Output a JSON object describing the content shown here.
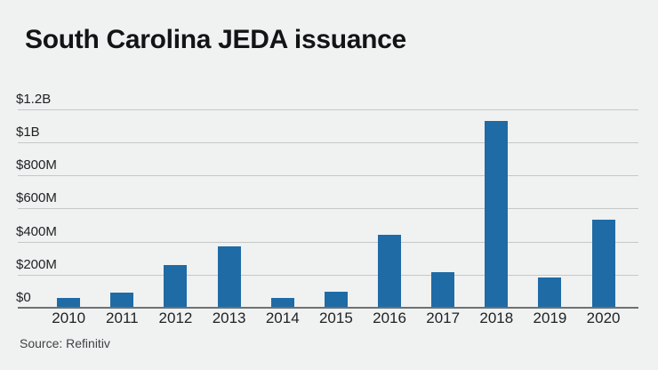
{
  "page": {
    "title": "South Carolina JEDA issuance",
    "source": "Source: Refinitiv"
  },
  "colors": {
    "background": "#f0f1f1",
    "bar": "#1f6ba6",
    "gridline": "#c6c8c8",
    "axis_line": "#6e7172",
    "title_text": "#121415",
    "tick_text": "#202325",
    "source_text": "#3f4244"
  },
  "chart_data": {
    "type": "bar",
    "title": "South Carolina JEDA issuance",
    "source": "Source: Refinitiv",
    "categories": [
      "2010",
      "2011",
      "2012",
      "2013",
      "2014",
      "2015",
      "2016",
      "2017",
      "2018",
      "2019",
      "2020"
    ],
    "values": [
      60,
      90,
      260,
      370,
      60,
      95,
      440,
      215,
      1130,
      185,
      530
    ],
    "unit": "USD millions",
    "xlabel": "",
    "ylabel": "",
    "ylim": [
      0,
      1200
    ],
    "y_ticks": [
      {
        "value": 0,
        "label": "$0"
      },
      {
        "value": 200,
        "label": "$200M"
      },
      {
        "value": 400,
        "label": "$400M"
      },
      {
        "value": 600,
        "label": "$600M"
      },
      {
        "value": 800,
        "label": "$800M"
      },
      {
        "value": 1000,
        "label": "$1B"
      },
      {
        "value": 1200,
        "label": "$1.2B"
      }
    ],
    "grid": "horizontal",
    "legend": "none",
    "bar_color": "#1f6ba6"
  }
}
